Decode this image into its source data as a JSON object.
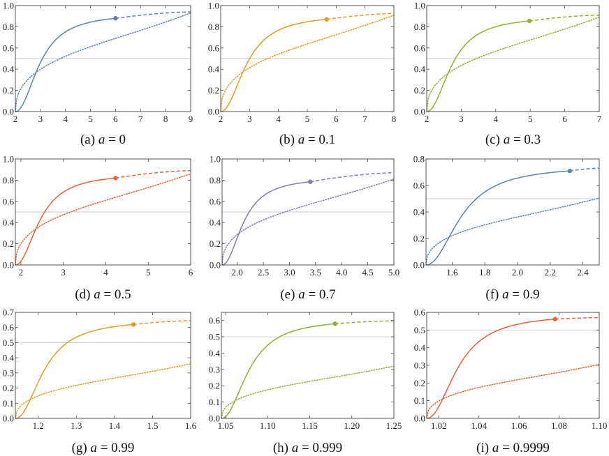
{
  "figure": {
    "caption_var": "a",
    "caption_eq": "="
  },
  "chart_data": [
    {
      "type": "line",
      "label": "(a)",
      "a_value": "0",
      "color": "#5e81b5",
      "xlim": [
        2,
        9
      ],
      "ylim": [
        0,
        1
      ],
      "xticks": [
        2,
        3,
        4,
        5,
        6,
        7,
        8,
        9
      ],
      "xtick_labels": [
        "2",
        "3",
        "4",
        "5",
        "6",
        "7",
        "8",
        "9"
      ],
      "yticks": [
        0,
        0.2,
        0.4,
        0.6,
        0.8,
        1.0
      ],
      "ytick_labels": [
        "0.0",
        "0.2",
        "0.4",
        "0.6",
        "0.8",
        "1.0"
      ],
      "hline": 0.5,
      "r0": 2,
      "r_marker": 6,
      "y_marker": 0.88,
      "y_end": 0.94,
      "dotted_end": 0.93
    },
    {
      "type": "line",
      "label": "(b)",
      "a_value": "0.1",
      "color": "#e19c24",
      "xlim": [
        2,
        8
      ],
      "ylim": [
        0,
        1
      ],
      "xticks": [
        2,
        3,
        4,
        5,
        6,
        7,
        8
      ],
      "xtick_labels": [
        "2",
        "3",
        "4",
        "5",
        "6",
        "7",
        "8"
      ],
      "yticks": [
        0,
        0.2,
        0.4,
        0.6,
        0.8,
        1.0
      ],
      "ytick_labels": [
        "0.0",
        "0.2",
        "0.4",
        "0.6",
        "0.8",
        "1.0"
      ],
      "hline": 0.5,
      "r0": 2,
      "r_marker": 5.67,
      "y_marker": 0.87,
      "y_end": 0.925,
      "dotted_end": 0.91
    },
    {
      "type": "line",
      "label": "(c)",
      "a_value": "0.3",
      "color": "#8fb032",
      "xlim": [
        2,
        7
      ],
      "ylim": [
        0,
        1
      ],
      "xticks": [
        2,
        3,
        4,
        5,
        6,
        7
      ],
      "xtick_labels": [
        "2",
        "3",
        "4",
        "5",
        "6",
        "7"
      ],
      "yticks": [
        0,
        0.2,
        0.4,
        0.6,
        0.8,
        1.0
      ],
      "ytick_labels": [
        "0.0",
        "0.2",
        "0.4",
        "0.6",
        "0.8",
        "1.0"
      ],
      "hline": 0.5,
      "r0": 2,
      "r_marker": 4.98,
      "y_marker": 0.855,
      "y_end": 0.91,
      "dotted_end": 0.89
    },
    {
      "type": "line",
      "label": "(d)",
      "a_value": "0.5",
      "color": "#eb6235",
      "xlim": [
        1.87,
        6
      ],
      "ylim": [
        0,
        1
      ],
      "xticks": [
        2,
        3,
        4,
        5,
        6
      ],
      "xtick_labels": [
        "2",
        "3",
        "4",
        "5",
        "6"
      ],
      "yticks": [
        0,
        0.2,
        0.4,
        0.6,
        0.8,
        1.0
      ],
      "ytick_labels": [
        "0.0",
        "0.2",
        "0.4",
        "0.6",
        "0.8",
        "1.0"
      ],
      "hline": 0.5,
      "r0": 1.87,
      "r_marker": 4.23,
      "y_marker": 0.82,
      "y_end": 0.89,
      "dotted_end": 0.86
    },
    {
      "type": "line",
      "label": "(e)",
      "a_value": "0.7",
      "color": "#8778b3",
      "xlim": [
        1.71,
        5.0
      ],
      "ylim": [
        0,
        1
      ],
      "xticks": [
        2.0,
        2.5,
        3.0,
        3.5,
        4.0,
        4.5,
        5.0
      ],
      "xtick_labels": [
        "2.0",
        "2.5",
        "3.0",
        "3.5",
        "4.0",
        "4.5",
        "5.0"
      ],
      "yticks": [
        0,
        0.2,
        0.4,
        0.6,
        0.8,
        1.0
      ],
      "ytick_labels": [
        "0.0",
        "0.2",
        "0.4",
        "0.6",
        "0.8",
        "1.0"
      ],
      "hline": 0.5,
      "r0": 1.71,
      "r_marker": 3.4,
      "y_marker": 0.785,
      "y_end": 0.87,
      "dotted_end": 0.81
    },
    {
      "type": "line",
      "label": "(f)",
      "a_value": "0.9",
      "color": "#5e81b5",
      "xlim": [
        1.44,
        2.5
      ],
      "ylim": [
        0,
        0.8
      ],
      "xticks": [
        1.6,
        1.8,
        2.0,
        2.2,
        2.4
      ],
      "xtick_labels": [
        "1.6",
        "1.8",
        "2.0",
        "2.2",
        "2.4"
      ],
      "yticks": [
        0,
        0.2,
        0.4,
        0.6,
        0.8
      ],
      "ytick_labels": [
        "0.0",
        "0.2",
        "0.4",
        "0.6",
        "0.8"
      ],
      "hline": 0.5,
      "r0": 1.44,
      "r_marker": 2.32,
      "y_marker": 0.71,
      "y_end": 0.73,
      "dotted_end": 0.505
    },
    {
      "type": "line",
      "label": "(g)",
      "a_value": "0.99",
      "color": "#e19c24",
      "xlim": [
        1.14,
        1.6
      ],
      "ylim": [
        0,
        0.7
      ],
      "xticks": [
        1.2,
        1.3,
        1.4,
        1.5,
        1.6
      ],
      "xtick_labels": [
        "1.2",
        "1.3",
        "1.4",
        "1.5",
        "1.6"
      ],
      "yticks": [
        0,
        0.1,
        0.2,
        0.3,
        0.4,
        0.5,
        0.6,
        0.7
      ],
      "ytick_labels": [
        "0.0",
        "0.1",
        "0.2",
        "0.3",
        "0.4",
        "0.5",
        "0.6",
        "0.7"
      ],
      "hline": 0.5,
      "r0": 1.14,
      "r_marker": 1.45,
      "y_marker": 0.62,
      "y_end": 0.645,
      "dotted_end": 0.36
    },
    {
      "type": "line",
      "label": "(h)",
      "a_value": "0.999",
      "color": "#8fb032",
      "xlim": [
        1.045,
        1.25
      ],
      "ylim": [
        0,
        0.65
      ],
      "xticks": [
        1.05,
        1.1,
        1.15,
        1.2,
        1.25
      ],
      "xtick_labels": [
        "1.05",
        "1.10",
        "1.15",
        "1.20",
        "1.25"
      ],
      "yticks": [
        0,
        0.1,
        0.2,
        0.3,
        0.4,
        0.5,
        0.6
      ],
      "ytick_labels": [
        "0.0",
        "0.1",
        "0.2",
        "0.3",
        "0.4",
        "0.5",
        "0.6"
      ],
      "hline": 0.5,
      "r0": 1.045,
      "r_marker": 1.18,
      "y_marker": 0.58,
      "y_end": 0.598,
      "dotted_end": 0.32
    },
    {
      "type": "line",
      "label": "(i)",
      "a_value": "0.9999",
      "color": "#eb6235",
      "xlim": [
        1.014,
        1.1
      ],
      "ylim": [
        0,
        0.6
      ],
      "xticks": [
        1.02,
        1.04,
        1.06,
        1.08,
        1.1
      ],
      "xtick_labels": [
        "1.02",
        "1.04",
        "1.06",
        "1.08",
        "1.10"
      ],
      "yticks": [
        0,
        0.1,
        0.2,
        0.3,
        0.4,
        0.5,
        0.6
      ],
      "ytick_labels": [
        "0.0",
        "0.1",
        "0.2",
        "0.3",
        "0.4",
        "0.5",
        "0.6"
      ],
      "hline": 0.5,
      "r0": 1.014,
      "r_marker": 1.078,
      "y_marker": 0.562,
      "y_end": 0.57,
      "dotted_end": 0.305
    }
  ]
}
